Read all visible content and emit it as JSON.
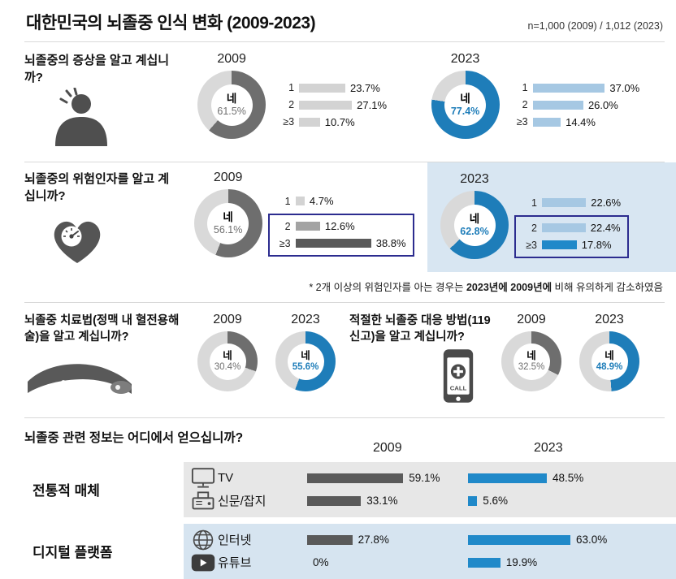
{
  "header": {
    "title": "대한민국의 뇌졸중 인식 변화 (2009-2023)",
    "sample": "n=1,000 (2009) / 1,012 (2023)"
  },
  "colors": {
    "accent_blue": "#1e7db9",
    "light_blue_bar": "#a6c8e3",
    "panel_blue": "#d8e6f2",
    "donut_gray": "#6e6e6e",
    "donut_rest": "#d9d9d9",
    "bar_light_gray": "#d3d3d3",
    "bar_mid_gray": "#a3a3a3",
    "bar_dark_gray": "#5a5a5a",
    "highlight_box_navy": "#2c2c8f",
    "band_gray": "#e7e7e7",
    "band_blue": "#d6e4f0"
  },
  "chart_data": [
    {
      "type": "donut+bars",
      "question": "뇌졸중의 증상을 알고 계십니까?",
      "series": [
        {
          "year": "2009",
          "yes_label": "네",
          "yes_value": 61.5,
          "yes_text": "61.5%",
          "bars": [
            {
              "label": "1",
              "value": 23.7,
              "text": "23.7%"
            },
            {
              "label": "2",
              "value": 27.1,
              "text": "27.1%"
            },
            {
              "label": "≥3",
              "value": 10.7,
              "text": "10.7%"
            }
          ]
        },
        {
          "year": "2023",
          "yes_label": "네",
          "yes_value": 77.4,
          "yes_text": "77.4%",
          "bars": [
            {
              "label": "1",
              "value": 37.0,
              "text": "37.0%"
            },
            {
              "label": "2",
              "value": 26.0,
              "text": "26.0%"
            },
            {
              "label": "≥3",
              "value": 14.4,
              "text": "14.4%"
            }
          ]
        }
      ]
    },
    {
      "type": "donut+bars",
      "question": "뇌졸중의 위험인자를 알고 계십니까?",
      "series": [
        {
          "year": "2009",
          "yes_label": "네",
          "yes_value": 56.1,
          "yes_text": "56.1%",
          "bars": [
            {
              "label": "1",
              "value": 4.7,
              "text": "4.7%"
            },
            {
              "label": "2",
              "value": 12.6,
              "text": "12.6%"
            },
            {
              "label": "≥3",
              "value": 38.8,
              "text": "38.8%"
            }
          ]
        },
        {
          "year": "2023",
          "yes_label": "네",
          "yes_value": 62.8,
          "yes_text": "62.8%",
          "bars": [
            {
              "label": "1",
              "value": 22.6,
              "text": "22.6%"
            },
            {
              "label": "2",
              "value": 22.4,
              "text": "22.4%"
            },
            {
              "label": "≥3",
              "value": 17.8,
              "text": "17.8%"
            }
          ]
        }
      ],
      "note": {
        "prefix": "* 2개 이상의 위험인자를 아는 경우는 ",
        "bold1": "2023년에",
        "mid": " ",
        "bold2": "2009년에",
        "suffix": " 비해 유의하게 감소하였음"
      }
    },
    {
      "type": "donut",
      "question": "뇌졸중 치료법(정맥 내 혈전용해술)을 알고 계십니까?",
      "series": [
        {
          "year": "2009",
          "yes_label": "네",
          "yes_value": 30.4,
          "yes_text": "30.4%"
        },
        {
          "year": "2023",
          "yes_label": "네",
          "yes_value": 55.6,
          "yes_text": "55.6%"
        }
      ]
    },
    {
      "type": "donut",
      "question": "적절한 뇌졸중 대응 방법(119 신고)을 알고 계십니까?",
      "icon_text": "CALL",
      "series": [
        {
          "year": "2009",
          "yes_label": "네",
          "yes_value": 32.5,
          "yes_text": "32.5%"
        },
        {
          "year": "2023",
          "yes_label": "네",
          "yes_value": 48.9,
          "yes_text": "48.9%"
        }
      ]
    },
    {
      "type": "bar",
      "question": "뇌졸중 관련 정보는 어디에서 얻으십니까?",
      "col_years": [
        "2009",
        "2023"
      ],
      "groups": [
        {
          "label": "전통적 매체",
          "rows": [
            {
              "icon": "tv-icon",
              "label": "TV",
              "v2009": 59.1,
              "t2009": "59.1%",
              "v2023": 48.5,
              "t2023": "48.5%"
            },
            {
              "icon": "newspaper-icon",
              "label": "신문/잡지",
              "v2009": 33.1,
              "t2009": "33.1%",
              "v2023": 5.6,
              "t2023": "5.6%"
            }
          ]
        },
        {
          "label": "디지털 플랫폼",
          "rows": [
            {
              "icon": "globe-icon",
              "label": "인터넷",
              "v2009": 27.8,
              "t2009": "27.8%",
              "v2023": 63.0,
              "t2023": "63.0%"
            },
            {
              "icon": "youtube-icon",
              "label": "유튜브",
              "v2009": 0,
              "t2009": "0%",
              "v2023": 19.9,
              "t2023": "19.9%"
            }
          ]
        }
      ]
    }
  ]
}
